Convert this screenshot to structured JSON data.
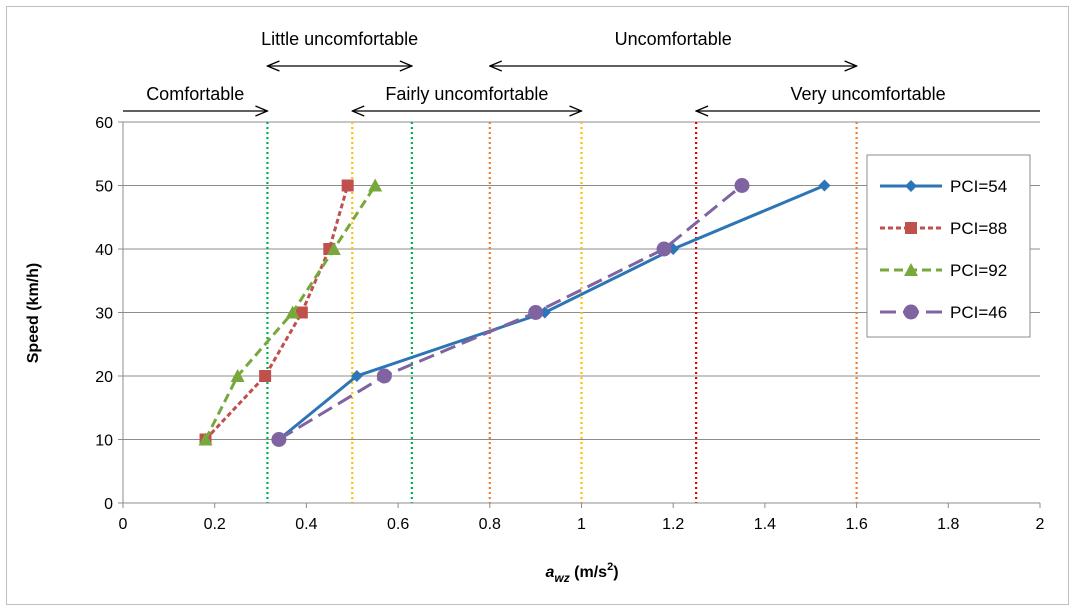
{
  "chart_data": {
    "type": "line",
    "xlabel_main": "a",
    "xlabel_sub": "wz",
    "xlabel_unit": " (m/s",
    "xlabel_sup": "2",
    "xlabel_close": ")",
    "ylabel": "Speed (km/h)",
    "xlim": [
      0,
      2
    ],
    "ylim": [
      0,
      60
    ],
    "x_ticks": [
      0,
      0.2,
      0.4,
      0.6,
      0.8,
      1,
      1.2,
      1.4,
      1.6,
      1.8,
      2
    ],
    "x_tick_labels": [
      "0",
      "0.2",
      "0.4",
      "0.6",
      "0.8",
      "1",
      "1.2",
      "1.4",
      "1.6",
      "1.8",
      "2"
    ],
    "y_ticks": [
      0,
      10,
      20,
      30,
      40,
      50,
      60
    ],
    "y_tick_labels": [
      "0",
      "10",
      "20",
      "30",
      "40",
      "50",
      "60"
    ],
    "grid": "horizontal",
    "legend_position": "right",
    "series": [
      {
        "name": "PCI=54",
        "color": "#2e75b6",
        "dash": "solid",
        "marker": "diamond",
        "points": [
          [
            0.34,
            10
          ],
          [
            0.51,
            20
          ],
          [
            0.92,
            30
          ],
          [
            1.2,
            40
          ],
          [
            1.53,
            50
          ]
        ]
      },
      {
        "name": "PCI=88",
        "color": "#c0504d",
        "dash": "short",
        "marker": "square",
        "points": [
          [
            0.18,
            10
          ],
          [
            0.31,
            20
          ],
          [
            0.39,
            30
          ],
          [
            0.45,
            40
          ],
          [
            0.49,
            50
          ]
        ]
      },
      {
        "name": "PCI=92",
        "color": "#77a83c",
        "dash": "medium",
        "marker": "triangle",
        "points": [
          [
            0.18,
            10
          ],
          [
            0.25,
            20
          ],
          [
            0.37,
            30
          ],
          [
            0.46,
            40
          ],
          [
            0.55,
            50
          ]
        ]
      },
      {
        "name": "PCI=46",
        "color": "#8064a2",
        "dash": "long",
        "marker": "circle",
        "points": [
          [
            0.34,
            10
          ],
          [
            0.57,
            20
          ],
          [
            0.9,
            30
          ],
          [
            1.18,
            40
          ],
          [
            1.35,
            50
          ]
        ]
      }
    ],
    "threshold_lines": [
      {
        "x": 0.315,
        "color": "#00b050"
      },
      {
        "x": 0.5,
        "color": "#ffc000"
      },
      {
        "x": 0.63,
        "color": "#00b050"
      },
      {
        "x": 0.8,
        "color": "#ed7d31"
      },
      {
        "x": 1.0,
        "color": "#ffc000"
      },
      {
        "x": 1.25,
        "color": "#e00000"
      },
      {
        "x": 1.6,
        "color": "#ed7d31"
      }
    ],
    "comfort_zones": [
      {
        "label": "Comfortable",
        "from": 0,
        "to": 0.315,
        "arrows": "end",
        "row": "low"
      },
      {
        "label": "Little uncomfortable",
        "from": 0.315,
        "to": 0.63,
        "arrows": "both",
        "row": "high"
      },
      {
        "label": "Fairly uncomfortable",
        "from": 0.5,
        "to": 1.0,
        "arrows": "both",
        "row": "low"
      },
      {
        "label": "Uncomfortable",
        "from": 0.8,
        "to": 1.6,
        "arrows": "both",
        "row": "high"
      },
      {
        "label": "Very uncomfortable",
        "from": 1.25,
        "to": 2.0,
        "arrows": "start",
        "row": "low"
      }
    ]
  }
}
